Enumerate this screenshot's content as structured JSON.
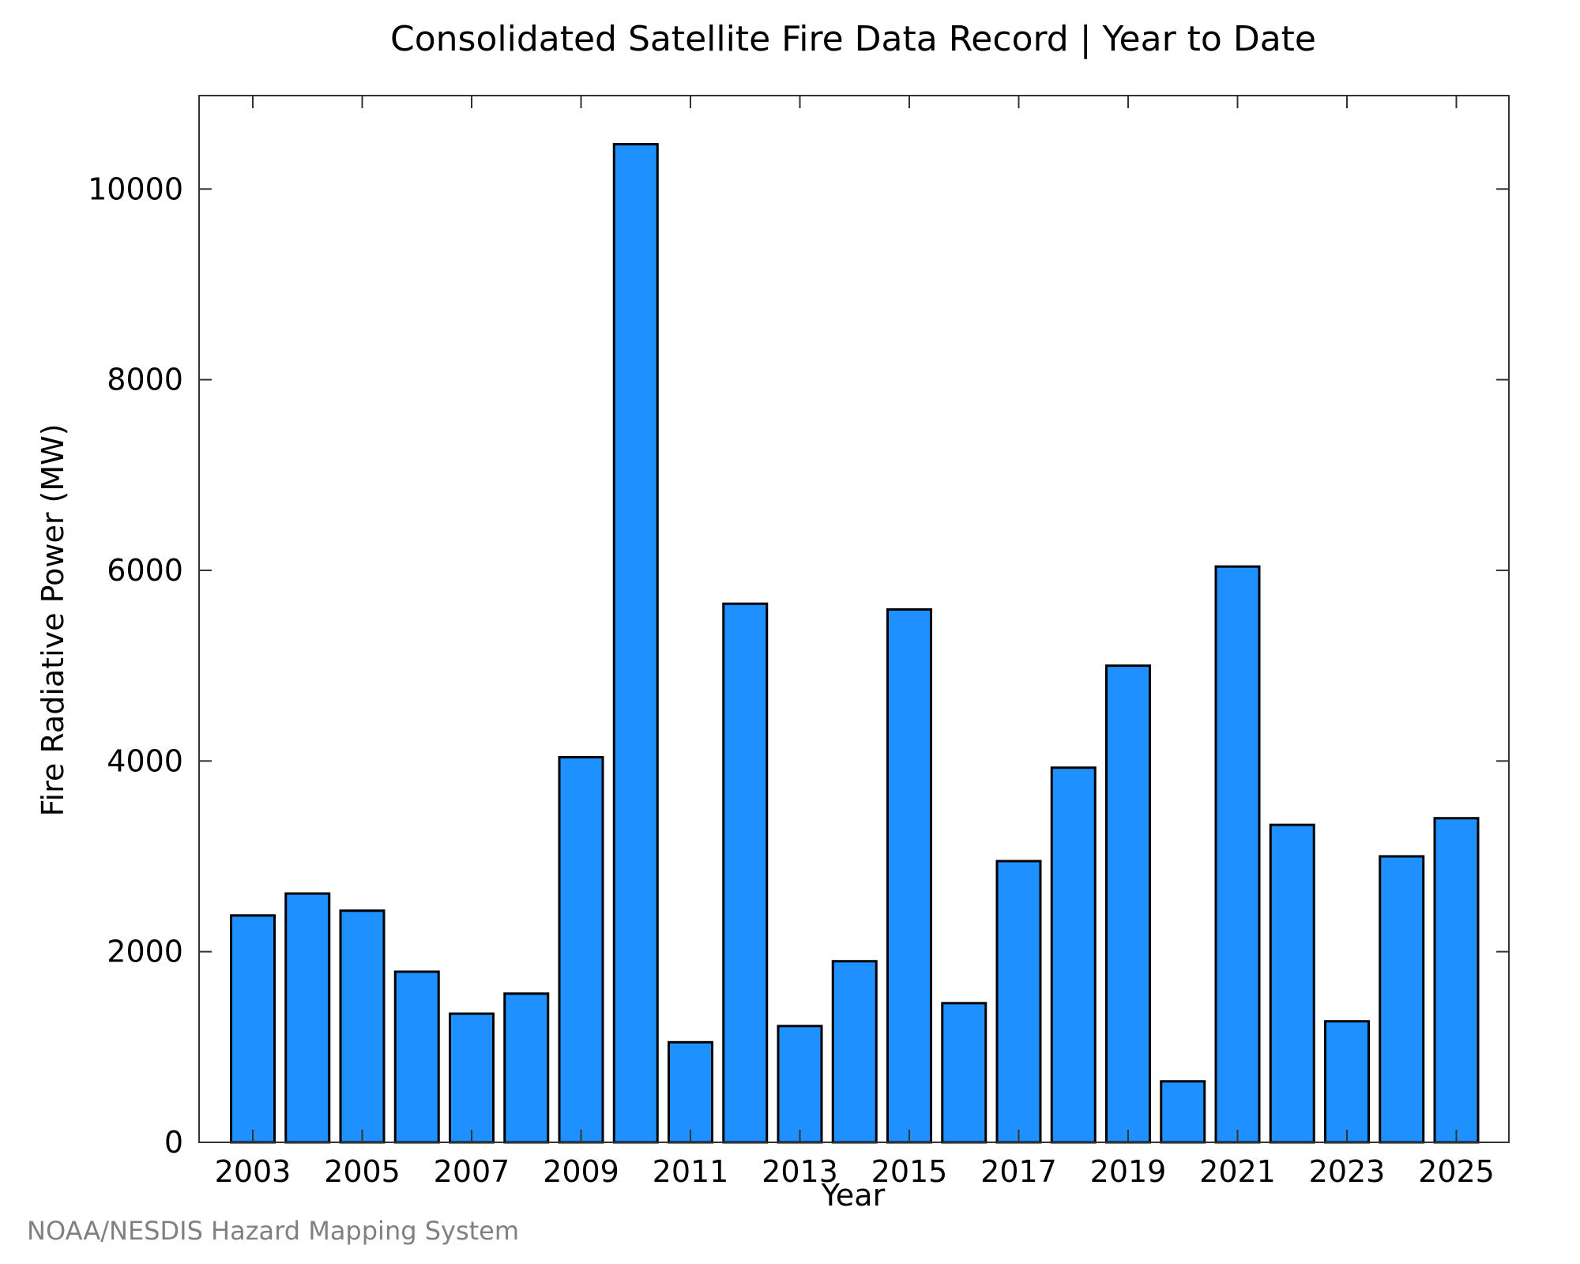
{
  "chart_data": {
    "type": "bar",
    "title": "Consolidated Satellite Fire Data Record | Year to Date",
    "xlabel": "Year",
    "ylabel": "Fire Radiative Power (MW)",
    "source": "NOAA/NESDIS Hazard Mapping System",
    "categories": [
      "2003",
      "2004",
      "2005",
      "2006",
      "2007",
      "2008",
      "2009",
      "2010",
      "2011",
      "2012",
      "2013",
      "2014",
      "2015",
      "2016",
      "2017",
      "2018",
      "2019",
      "2020",
      "2021",
      "2022",
      "2023",
      "2024",
      "2025"
    ],
    "values": [
      2380,
      2610,
      2430,
      1790,
      1350,
      1560,
      4040,
      10470,
      1050,
      5650,
      1220,
      1900,
      5590,
      1460,
      2950,
      3930,
      5000,
      640,
      6040,
      3330,
      1270,
      3000,
      3400
    ],
    "x_tick_labels": [
      "2003",
      "2005",
      "2007",
      "2009",
      "2011",
      "2013",
      "2015",
      "2017",
      "2019",
      "2021",
      "2023",
      "2025"
    ],
    "y_ticks": [
      0,
      2000,
      4000,
      6000,
      8000,
      10000
    ],
    "ylim": [
      0,
      10980
    ],
    "grid": false,
    "bar_color": "#1e90ff",
    "bar_edge_color": "#000000"
  }
}
